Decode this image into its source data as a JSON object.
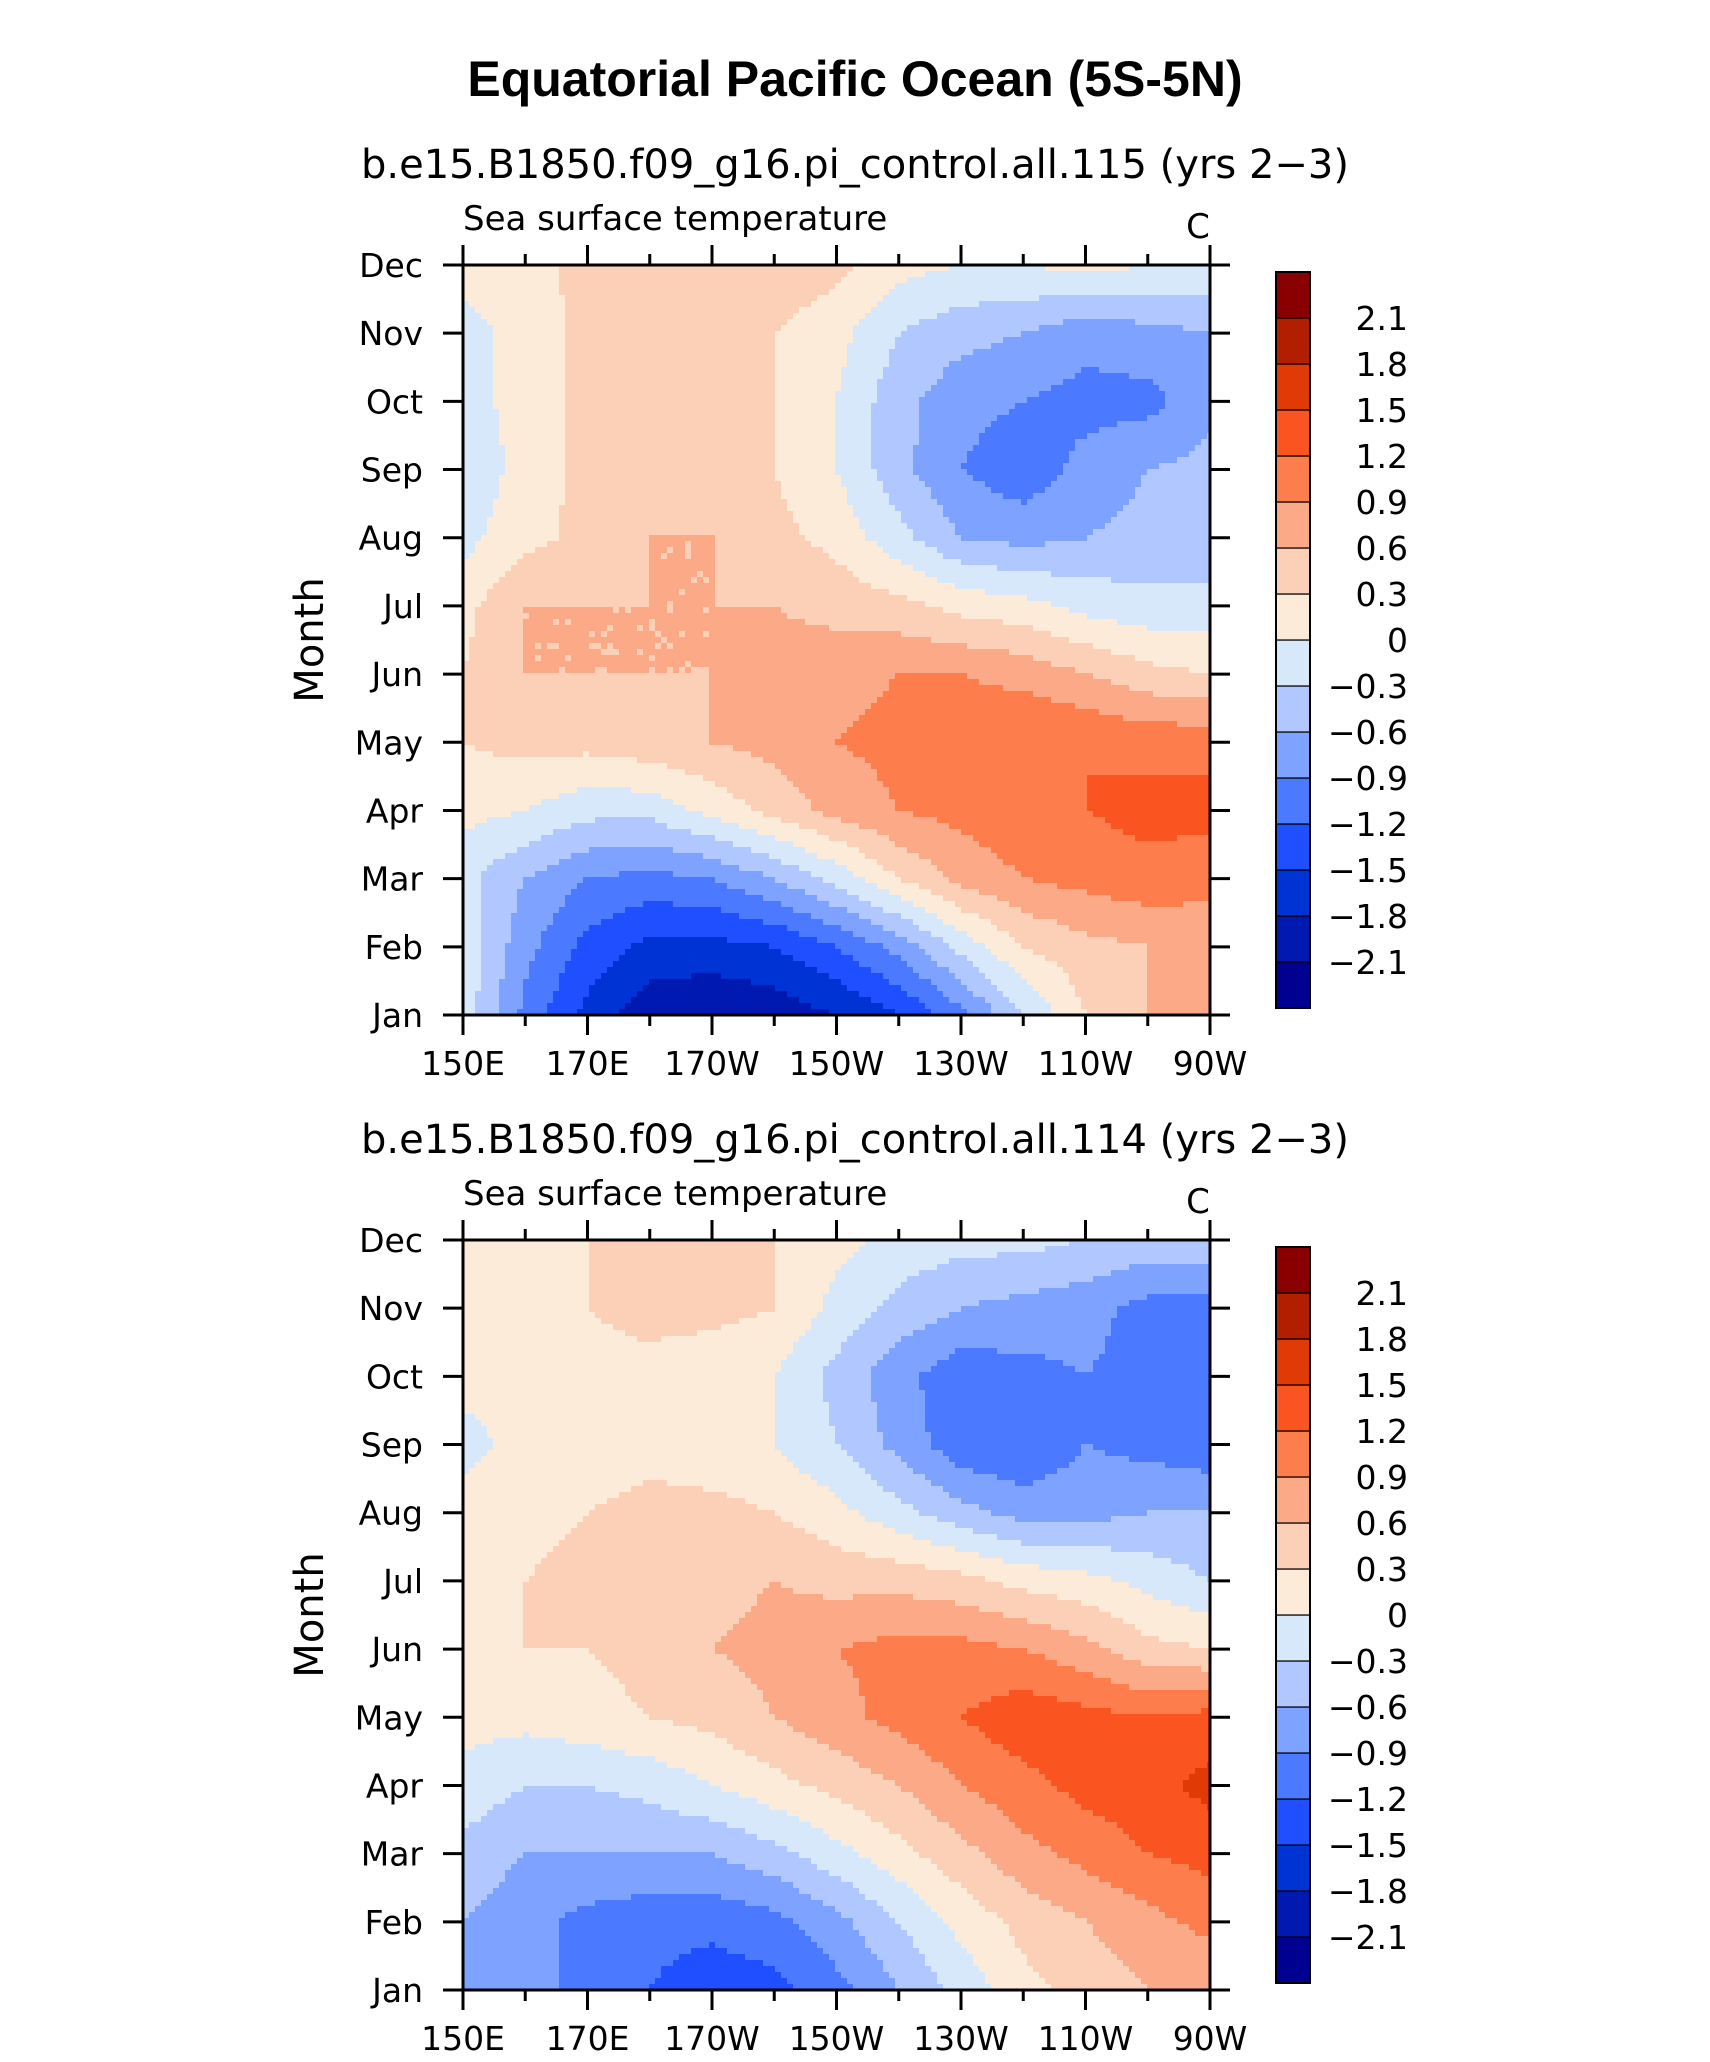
{
  "figure_title": "Equatorial Pacific Ocean (5S-5N)",
  "colors": {
    "levels_palette": [
      "#000091",
      "#0019b0",
      "#0033d4",
      "#1f4fff",
      "#4b79ff",
      "#7ea2ff",
      "#b0c8ff",
      "#d8e8fb",
      "#fdebd9",
      "#fcd0b7",
      "#fba987",
      "#fd7d4d",
      "#fa5520",
      "#e03a07",
      "#b11f00",
      "#8a0000"
    ]
  },
  "chart_data": [
    {
      "type": "heatmap",
      "title": "b.e15.B1850.f09_g16.pi_control.all.115 (yrs 2−3)",
      "variable": "Sea surface temperature",
      "units": "C",
      "ylabel": "Month",
      "xlabel": "",
      "x_tick_labels": [
        "150E",
        "170E",
        "170W",
        "150W",
        "130W",
        "110W",
        "90W"
      ],
      "y_tick_labels": [
        "Jan",
        "Feb",
        "Mar",
        "Apr",
        "May",
        "Jun",
        "Jul",
        "Aug",
        "Sep",
        "Oct",
        "Nov",
        "Dec"
      ],
      "colorbar_labels": [
        "2.1",
        "1.8",
        "1.5",
        "1.2",
        "0.9",
        "0.6",
        "0.3",
        "0",
        "−0.3",
        "−0.6",
        "−0.9",
        "−1.2",
        "−1.5",
        "−1.8",
        "−2.1"
      ],
      "contour_levels": [
        -2.1,
        -1.8,
        -1.5,
        -1.2,
        -0.9,
        -0.6,
        -0.3,
        0,
        0.3,
        0.6,
        0.9,
        1.2,
        1.5,
        1.8,
        2.1
      ],
      "x_values_lon": [
        150,
        160,
        170,
        180,
        190,
        200,
        210,
        220,
        230,
        240,
        250,
        260,
        270
      ],
      "grid_months": [
        "Jan",
        "Feb",
        "Mar",
        "Apr",
        "May",
        "Jun",
        "Jul",
        "Aug",
        "Sep",
        "Oct",
        "Nov",
        "Dec"
      ],
      "z": [
        [
          -0.1,
          -1.0,
          -1.6,
          -2.0,
          -2.1,
          -2.0,
          -1.8,
          -1.5,
          -1.0,
          -0.3,
          0.3,
          0.6,
          0.6
        ],
        [
          -0.1,
          -0.8,
          -1.3,
          -1.6,
          -1.6,
          -1.5,
          -1.2,
          -0.8,
          -0.2,
          0.3,
          0.5,
          0.6,
          0.7
        ],
        [
          -0.2,
          -0.6,
          -0.9,
          -1.0,
          -0.9,
          -0.6,
          -0.2,
          0.3,
          0.7,
          0.9,
          1.0,
          1.1,
          1.0
        ],
        [
          0.1,
          0.0,
          -0.2,
          -0.2,
          0.1,
          0.4,
          0.7,
          0.9,
          1.0,
          1.1,
          1.2,
          1.3,
          1.3
        ],
        [
          0.3,
          0.4,
          0.4,
          0.5,
          0.6,
          0.7,
          0.9,
          1.0,
          1.1,
          1.2,
          1.2,
          1.1,
          1.1
        ],
        [
          0.3,
          0.6,
          0.6,
          0.6,
          0.6,
          0.7,
          0.8,
          0.9,
          0.9,
          0.8,
          0.6,
          0.4,
          0.3
        ],
        [
          0.2,
          0.6,
          0.6,
          0.6,
          0.6,
          0.6,
          0.5,
          0.4,
          0.2,
          0.1,
          -0.1,
          -0.2,
          -0.2
        ],
        [
          -0.1,
          0.2,
          0.4,
          0.6,
          0.6,
          0.4,
          0.2,
          -0.2,
          -0.6,
          -0.7,
          -0.6,
          -0.5,
          -0.5
        ],
        [
          -0.2,
          0.1,
          0.4,
          0.6,
          0.5,
          0.3,
          0.0,
          -0.5,
          -0.9,
          -1.1,
          -0.8,
          -0.6,
          -0.5
        ],
        [
          -0.1,
          0.1,
          0.4,
          0.6,
          0.5,
          0.3,
          0.0,
          -0.5,
          -0.8,
          -0.9,
          -1.0,
          -1.0,
          -0.7
        ],
        [
          -0.1,
          0.1,
          0.4,
          0.6,
          0.5,
          0.3,
          0.1,
          -0.3,
          -0.5,
          -0.6,
          -0.8,
          -0.7,
          -0.6
        ],
        [
          0.1,
          0.2,
          0.4,
          0.6,
          0.6,
          0.5,
          0.4,
          0.1,
          0.0,
          0.0,
          0.1,
          0.0,
          -0.1
        ]
      ]
    },
    {
      "type": "heatmap",
      "title": "b.e15.B1850.f09_g16.pi_control.all.114 (yrs 2−3)",
      "variable": "Sea surface temperature",
      "units": "C",
      "ylabel": "Month",
      "xlabel": "",
      "x_tick_labels": [
        "150E",
        "170E",
        "170W",
        "150W",
        "130W",
        "110W",
        "90W"
      ],
      "y_tick_labels": [
        "Jan",
        "Feb",
        "Mar",
        "Apr",
        "May",
        "Jun",
        "Jul",
        "Aug",
        "Sep",
        "Oct",
        "Nov",
        "Dec"
      ],
      "colorbar_labels": [
        "2.1",
        "1.8",
        "1.5",
        "1.2",
        "0.9",
        "0.6",
        "0.3",
        "0",
        "−0.3",
        "−0.6",
        "−0.9",
        "−1.2",
        "−1.5",
        "−1.8",
        "−2.1"
      ],
      "contour_levels": [
        -2.1,
        -1.8,
        -1.5,
        -1.2,
        -0.9,
        -0.6,
        -0.3,
        0,
        0.3,
        0.6,
        0.9,
        1.2,
        1.5,
        1.8,
        2.1
      ],
      "x_values_lon": [
        150,
        160,
        170,
        180,
        190,
        200,
        210,
        220,
        230,
        240,
        250,
        260,
        270
      ],
      "grid_months": [
        "Jan",
        "Feb",
        "Mar",
        "Apr",
        "May",
        "Jun",
        "Jul",
        "Aug",
        "Sep",
        "Oct",
        "Nov",
        "Dec"
      ],
      "z": [
        [
          -0.6,
          -0.8,
          -1.0,
          -1.2,
          -1.4,
          -1.3,
          -1.0,
          -0.6,
          -0.2,
          0.2,
          0.4,
          0.6,
          0.6
        ],
        [
          -0.6,
          -0.8,
          -1.0,
          -1.1,
          -1.1,
          -1.0,
          -0.7,
          -0.3,
          0.1,
          0.4,
          0.6,
          0.8,
          1.0
        ],
        [
          -0.4,
          -0.6,
          -0.6,
          -0.6,
          -0.6,
          -0.4,
          -0.1,
          0.2,
          0.5,
          0.8,
          1.0,
          1.2,
          1.3
        ],
        [
          -0.1,
          -0.3,
          -0.3,
          -0.2,
          0.0,
          0.2,
          0.4,
          0.6,
          0.9,
          1.1,
          1.3,
          1.4,
          1.6
        ],
        [
          0.1,
          0.1,
          0.2,
          0.3,
          0.4,
          0.6,
          0.8,
          1.0,
          1.2,
          1.4,
          1.3,
          1.2,
          1.3
        ],
        [
          0.2,
          0.3,
          0.3,
          0.4,
          0.6,
          0.7,
          0.9,
          1.0,
          1.0,
          0.9,
          0.7,
          0.4,
          0.3
        ],
        [
          0.2,
          0.3,
          0.4,
          0.5,
          0.5,
          0.6,
          0.5,
          0.5,
          0.4,
          0.2,
          0.1,
          -0.1,
          -0.3
        ],
        [
          0.1,
          0.2,
          0.3,
          0.4,
          0.4,
          0.3,
          0.1,
          -0.2,
          -0.5,
          -0.7,
          -0.7,
          -0.6,
          -0.6
        ],
        [
          -0.1,
          0.1,
          0.1,
          0.2,
          0.1,
          0.0,
          -0.3,
          -0.7,
          -1.1,
          -1.2,
          -0.9,
          -1.0,
          -1.1
        ],
        [
          0.1,
          0.1,
          0.2,
          0.2,
          0.1,
          0.0,
          -0.4,
          -0.8,
          -1.1,
          -1.0,
          -0.9,
          -1.0,
          -1.1
        ],
        [
          0.1,
          0.2,
          0.3,
          0.4,
          0.4,
          0.3,
          -0.1,
          -0.4,
          -0.6,
          -0.7,
          -0.8,
          -1.0,
          -1.0
        ],
        [
          0.1,
          0.2,
          0.3,
          0.4,
          0.4,
          0.3,
          0.1,
          -0.1,
          -0.2,
          -0.2,
          -0.3,
          -0.4,
          -0.4
        ]
      ]
    }
  ]
}
